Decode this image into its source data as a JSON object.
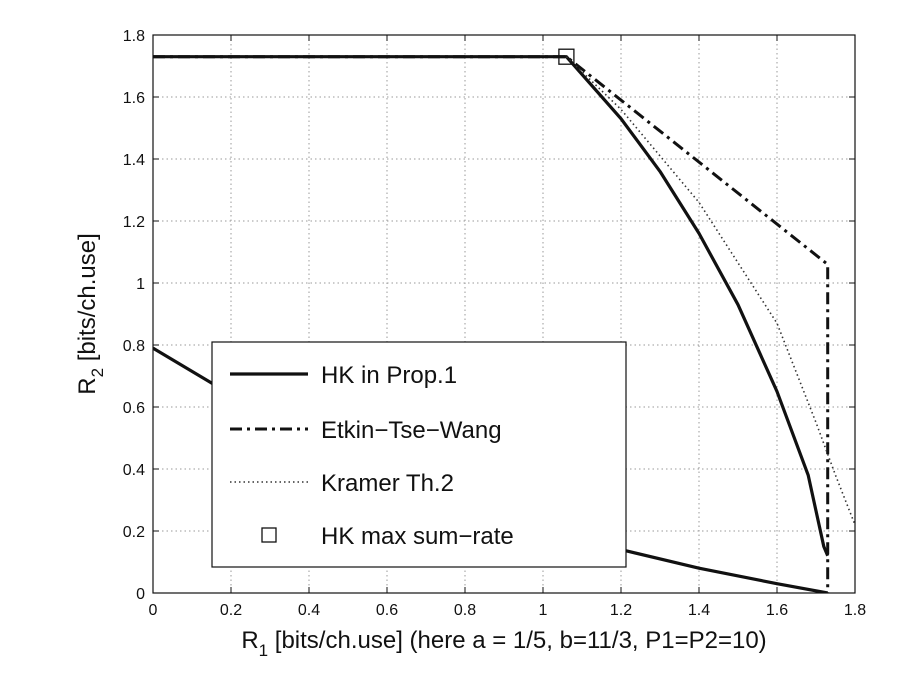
{
  "chart_data": {
    "type": "line",
    "xlabel": {
      "main": "R",
      "sub": "1",
      "rest": " [bits/ch.use] (here a = 1/5, b=11/3, P1=P2=10)"
    },
    "ylabel": {
      "main": "R",
      "sub": "2",
      "rest": " [bits/ch.use]"
    },
    "xlim": [
      0,
      1.8
    ],
    "ylim": [
      0,
      1.8
    ],
    "xticks": [
      0,
      0.2,
      0.4,
      0.6,
      0.8,
      1,
      1.2,
      1.4,
      1.6,
      1.8
    ],
    "yticks": [
      0,
      0.2,
      0.4,
      0.6,
      0.8,
      1,
      1.2,
      1.4,
      1.6,
      1.8
    ],
    "xtick_labels": [
      "0",
      "0.2",
      "0.4",
      "0.6",
      "0.8",
      "1",
      "1.2",
      "1.4",
      "1.6",
      "1.8"
    ],
    "ytick_labels": [
      "0",
      "0.2",
      "0.4",
      "0.6",
      "0.8",
      "1",
      "1.2",
      "1.4",
      "1.6",
      "1.8"
    ],
    "grid": true,
    "legend_position": "lower-left",
    "series": [
      {
        "name": "HK in Prop.1",
        "style": "solid",
        "color": "#111111",
        "x": [
          0,
          1.06,
          1.2,
          1.3,
          1.4,
          1.5,
          1.6,
          1.68,
          1.72,
          1.73
        ],
        "y": [
          1.73,
          1.73,
          1.53,
          1.36,
          1.16,
          0.93,
          0.65,
          0.38,
          0.15,
          0.12
        ]
      },
      {
        "name": "HK in Prop.1 (lower curve)",
        "style": "solid",
        "color": "#111111",
        "x": [
          0,
          0.2,
          0.4,
          0.6,
          0.8,
          1.0,
          1.2,
          1.4,
          1.6,
          1.73
        ],
        "y": [
          0.79,
          0.64,
          0.51,
          0.4,
          0.3,
          0.21,
          0.14,
          0.08,
          0.03,
          0
        ],
        "legend": false
      },
      {
        "name": "Etkin-Tse-Wang",
        "style": "dashdot",
        "color": "#111111",
        "x": [
          0,
          1.06,
          1.73,
          1.73
        ],
        "y": [
          1.73,
          1.73,
          1.06,
          0
        ]
      },
      {
        "name": "Kramer Th.2",
        "style": "dotted",
        "color": "#333333",
        "x": [
          1.06,
          1.2,
          1.4,
          1.6,
          1.7,
          1.75,
          1.8
        ],
        "y": [
          1.73,
          1.56,
          1.26,
          0.87,
          0.55,
          0.38,
          0.22
        ]
      }
    ],
    "markers": [
      {
        "name": "HK max sum-rate",
        "shape": "square",
        "x": 1.06,
        "y": 1.73
      }
    ],
    "legend": [
      {
        "label": "HK in Prop.1",
        "style": "solid"
      },
      {
        "label": "Etkin−Tse−Wang",
        "style": "dashdot"
      },
      {
        "label": "Kramer Th.2",
        "style": "dotted"
      },
      {
        "label": "HK max sum−rate",
        "style": "square"
      }
    ]
  }
}
